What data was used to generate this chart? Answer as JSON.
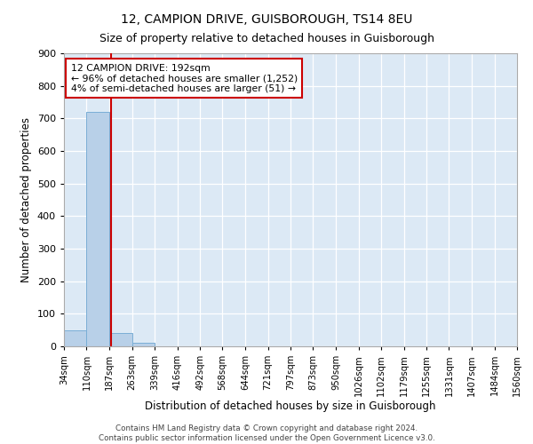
{
  "title1": "12, CAMPION DRIVE, GUISBOROUGH, TS14 8EU",
  "title2": "Size of property relative to detached houses in Guisborough",
  "xlabel": "Distribution of detached houses by size in Guisborough",
  "ylabel": "Number of detached properties",
  "footer1": "Contains HM Land Registry data © Crown copyright and database right 2024.",
  "footer2": "Contains public sector information licensed under the Open Government Licence v3.0.",
  "annotation_line1": "12 CAMPION DRIVE: 192sqm",
  "annotation_line2": "← 96% of detached houses are smaller (1,252)",
  "annotation_line3": "4% of semi-detached houses are larger (51) →",
  "property_size": 192,
  "bar_edges": [
    34,
    110,
    187,
    263,
    339,
    416,
    492,
    568,
    644,
    721,
    797,
    873,
    950,
    1026,
    1102,
    1179,
    1255,
    1331,
    1407,
    1484,
    1560
  ],
  "bar_heights": [
    50,
    720,
    40,
    12,
    0,
    0,
    0,
    0,
    0,
    0,
    0,
    0,
    0,
    0,
    0,
    0,
    0,
    0,
    0,
    0
  ],
  "bar_color": "#b8d0e8",
  "bar_edge_color": "#7aaed6",
  "property_line_color": "#cc0000",
  "annotation_box_color": "#cc0000",
  "background_color": "#dce9f5",
  "ylim": [
    0,
    900
  ],
  "yticks": [
    0,
    100,
    200,
    300,
    400,
    500,
    600,
    700,
    800,
    900
  ]
}
